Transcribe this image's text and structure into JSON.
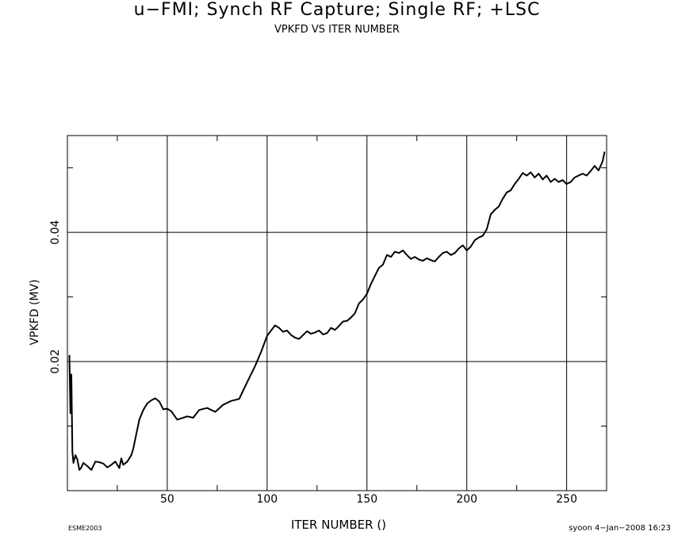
{
  "chart_data": {
    "type": "line",
    "title": "u−FMI; Synch RF Capture; Single RF; +LSC",
    "subtitle": "VPKFD VS ITER NUMBER",
    "xlabel": "ITER NUMBER ()",
    "ylabel": "VPKFD (MV)",
    "xlim": [
      0,
      270
    ],
    "ylim": [
      0.0,
      0.055
    ],
    "xticks_major": [
      50,
      100,
      150,
      200,
      250
    ],
    "xticks_minor": [
      25,
      75,
      125,
      175,
      225
    ],
    "yticks_major": [
      0.02,
      0.04
    ],
    "yticks_minor": [
      0.01,
      0.03,
      0.05
    ],
    "ytick_labels": [
      "0.02",
      "0.04"
    ],
    "grid": true,
    "series": [
      {
        "name": "",
        "x": [
          1,
          1.5,
          2,
          2.5,
          3,
          4,
          5,
          6,
          7,
          8,
          10,
          12,
          14,
          16,
          18,
          20,
          22,
          24,
          26,
          27,
          28,
          30,
          32,
          33,
          34,
          36,
          38,
          40,
          42,
          44,
          46,
          48,
          50,
          52,
          55,
          57,
          60,
          63,
          66,
          70,
          74,
          78,
          82,
          86,
          90,
          94,
          97,
          100,
          102,
          104,
          106,
          108,
          110,
          112,
          114,
          116,
          118,
          120,
          122,
          124,
          126,
          128,
          130,
          132,
          134,
          136,
          138,
          140,
          142,
          144,
          146,
          148,
          150,
          152,
          154,
          156,
          158,
          160,
          162,
          164,
          166,
          168,
          170,
          172,
          174,
          176,
          178,
          180,
          182,
          184,
          186,
          188,
          190,
          192,
          194,
          196,
          198,
          200,
          202,
          204,
          206,
          208,
          210,
          212,
          214,
          216,
          218,
          220,
          222,
          224,
          226,
          228,
          230,
          232,
          234,
          236,
          238,
          240,
          242,
          244,
          246,
          248,
          250,
          252,
          254,
          256,
          258,
          260,
          262,
          264,
          266,
          268,
          269
        ],
        "y": [
          0.021,
          0.012,
          0.018,
          0.006,
          0.0043,
          0.0055,
          0.0048,
          0.0032,
          0.0036,
          0.0043,
          0.0038,
          0.0032,
          0.0045,
          0.0044,
          0.0042,
          0.0036,
          0.004,
          0.0045,
          0.0035,
          0.005,
          0.004,
          0.0045,
          0.0055,
          0.0065,
          0.008,
          0.011,
          0.0125,
          0.0135,
          0.014,
          0.0143,
          0.0138,
          0.0126,
          0.0127,
          0.0123,
          0.011,
          0.0112,
          0.0115,
          0.0113,
          0.0125,
          0.0128,
          0.0122,
          0.0133,
          0.0139,
          0.0142,
          0.0168,
          0.0193,
          0.0215,
          0.024,
          0.0248,
          0.0256,
          0.0252,
          0.0246,
          0.0248,
          0.0241,
          0.0237,
          0.0235,
          0.0241,
          0.0247,
          0.0243,
          0.0245,
          0.0248,
          0.0242,
          0.0244,
          0.0252,
          0.0249,
          0.0255,
          0.0262,
          0.0263,
          0.0268,
          0.0275,
          0.029,
          0.0296,
          0.0305,
          0.032,
          0.0333,
          0.0345,
          0.035,
          0.0365,
          0.0362,
          0.037,
          0.0368,
          0.0372,
          0.0365,
          0.0359,
          0.0362,
          0.0358,
          0.0356,
          0.036,
          0.0357,
          0.0355,
          0.0362,
          0.0368,
          0.037,
          0.0365,
          0.0368,
          0.0375,
          0.038,
          0.0372,
          0.0378,
          0.0388,
          0.0392,
          0.0395,
          0.0405,
          0.0428,
          0.0435,
          0.044,
          0.0452,
          0.0462,
          0.0465,
          0.0475,
          0.0483,
          0.0492,
          0.0488,
          0.0493,
          0.0485,
          0.0491,
          0.0482,
          0.0488,
          0.0478,
          0.0483,
          0.0478,
          0.0481,
          0.0475,
          0.0478,
          0.0485,
          0.0488,
          0.0491,
          0.0488,
          0.0495,
          0.0503,
          0.0496,
          0.051,
          0.0525
        ]
      }
    ]
  },
  "footer": {
    "left": "ESME2003",
    "right": "syoon  4−Jan−2008 16:23"
  }
}
